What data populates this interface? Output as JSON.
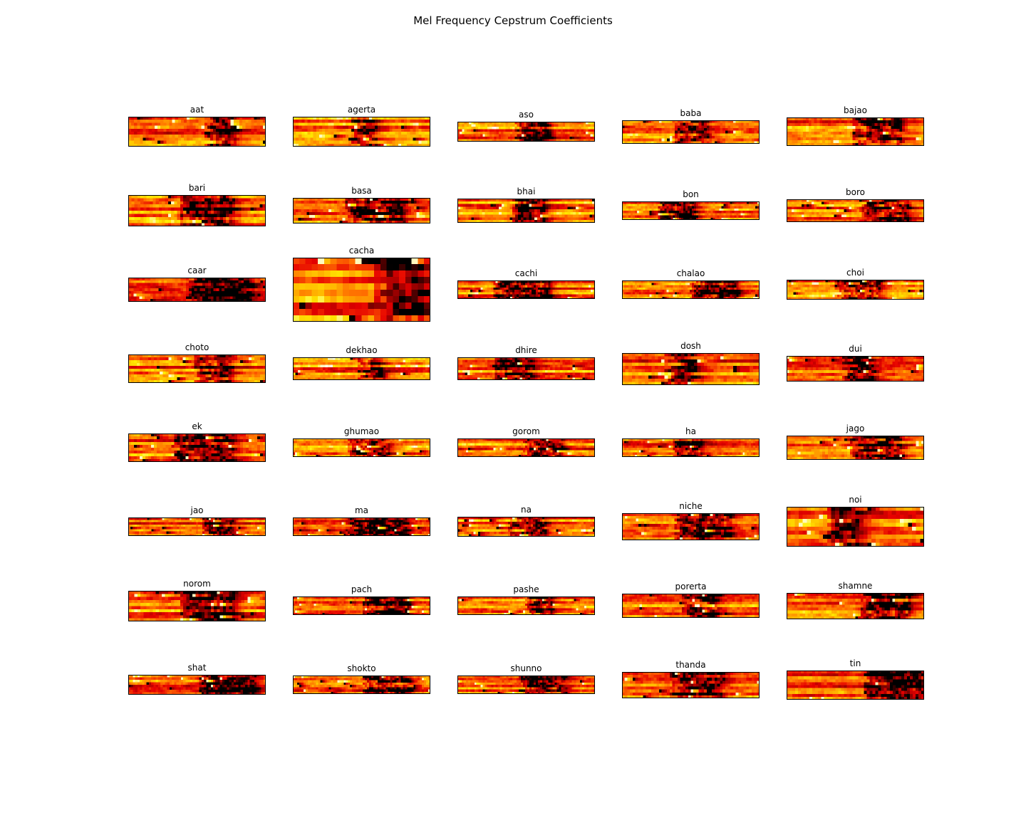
{
  "figure_title": "Mel Frequency Cepstrum Coefficients",
  "chart_data": {
    "type": "heatmap",
    "title": "Mel Frequency Cepstrum Coefficients",
    "colormap": "hot",
    "colormap_stops": [
      "#000000",
      "#8b0000",
      "#e60000",
      "#ff6a00",
      "#ffb000",
      "#ffee00",
      "#ffffff"
    ],
    "axes_visible": false,
    "grid": "off",
    "layout": {
      "rows": 8,
      "cols": 5
    },
    "panels": [
      {
        "label": "aat",
        "frames": 47,
        "coeffs": 10
      },
      {
        "label": "agerta",
        "frames": 47,
        "coeffs": 10
      },
      {
        "label": "aso",
        "frames": 60,
        "coeffs": 8
      },
      {
        "label": "baba",
        "frames": 52,
        "coeffs": 9
      },
      {
        "label": "bajao",
        "frames": 50,
        "coeffs": 10
      },
      {
        "label": "bari",
        "frames": 45,
        "coeffs": 10
      },
      {
        "label": "basa",
        "frames": 50,
        "coeffs": 9
      },
      {
        "label": "bhai",
        "frames": 50,
        "coeffs": 9
      },
      {
        "label": "bon",
        "frames": 65,
        "coeffs": 8
      },
      {
        "label": "boro",
        "frames": 55,
        "coeffs": 9
      },
      {
        "label": "caar",
        "frames": 50,
        "coeffs": 9
      },
      {
        "label": "cacha",
        "frames": 22,
        "coeffs": 10
      },
      {
        "label": "cachi",
        "frames": 65,
        "coeffs": 8
      },
      {
        "label": "chalao",
        "frames": 65,
        "coeffs": 8
      },
      {
        "label": "choi",
        "frames": 60,
        "coeffs": 8
      },
      {
        "label": "choto",
        "frames": 48,
        "coeffs": 10
      },
      {
        "label": "dekhao",
        "frames": 55,
        "coeffs": 9
      },
      {
        "label": "dhire",
        "frames": 55,
        "coeffs": 9
      },
      {
        "label": "dosh",
        "frames": 42,
        "coeffs": 10
      },
      {
        "label": "dui",
        "frames": 52,
        "coeffs": 9
      },
      {
        "label": "ek",
        "frames": 48,
        "coeffs": 10
      },
      {
        "label": "ghumao",
        "frames": 65,
        "coeffs": 8
      },
      {
        "label": "gorom",
        "frames": 65,
        "coeffs": 8
      },
      {
        "label": "ha",
        "frames": 65,
        "coeffs": 8
      },
      {
        "label": "jago",
        "frames": 50,
        "coeffs": 9
      },
      {
        "label": "jao",
        "frames": 65,
        "coeffs": 8
      },
      {
        "label": "ma",
        "frames": 65,
        "coeffs": 8
      },
      {
        "label": "na",
        "frames": 60,
        "coeffs": 8
      },
      {
        "label": "niche",
        "frames": 50,
        "coeffs": 10
      },
      {
        "label": "noi",
        "frames": 34,
        "coeffs": 10
      },
      {
        "label": "norom",
        "frames": 45,
        "coeffs": 10
      },
      {
        "label": "pach",
        "frames": 65,
        "coeffs": 8
      },
      {
        "label": "pashe",
        "frames": 65,
        "coeffs": 8
      },
      {
        "label": "porerta",
        "frames": 55,
        "coeffs": 9
      },
      {
        "label": "shamne",
        "frames": 52,
        "coeffs": 9
      },
      {
        "label": "shat",
        "frames": 60,
        "coeffs": 8
      },
      {
        "label": "shokto",
        "frames": 65,
        "coeffs": 8
      },
      {
        "label": "shunno",
        "frames": 65,
        "coeffs": 8
      },
      {
        "label": "thanda",
        "frames": 52,
        "coeffs": 9
      },
      {
        "label": "tin",
        "frames": 48,
        "coeffs": 10
      }
    ]
  }
}
